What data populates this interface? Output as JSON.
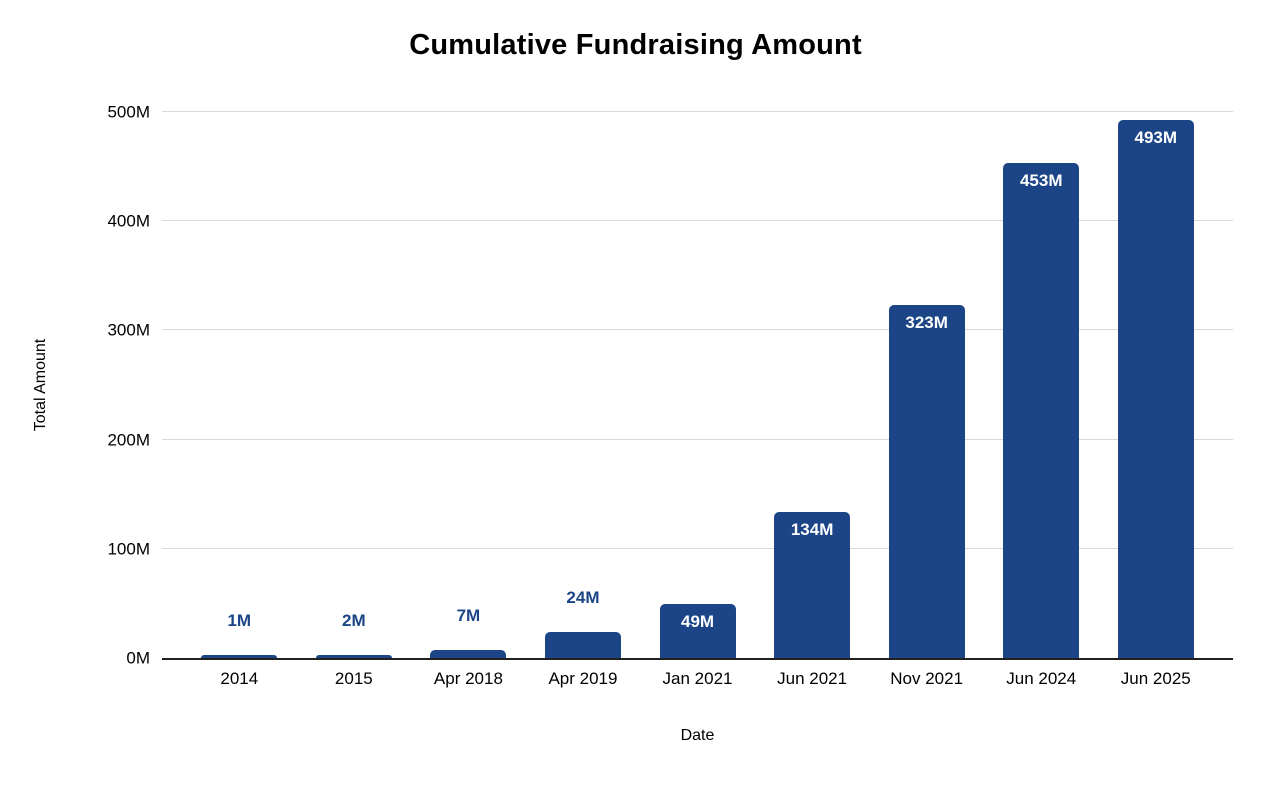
{
  "chart_data": {
    "type": "bar",
    "title": "Cumulative Fundraising Amount",
    "xlabel": "Date",
    "ylabel": "Total Amount",
    "categories": [
      "2014",
      "2015",
      "Apr 2018",
      "Apr 2019",
      "Jan 2021",
      "Jun 2021",
      "Nov 2021",
      "Jun 2024",
      "Jun 2025"
    ],
    "values": [
      1,
      2,
      7,
      24,
      49,
      134,
      323,
      453,
      493
    ],
    "value_labels": [
      "1M",
      "2M",
      "7M",
      "24M",
      "49M",
      "134M",
      "323M",
      "453M",
      "493M"
    ],
    "ylim": [
      0,
      500
    ],
    "yticks": [
      0,
      100,
      200,
      300,
      400,
      500
    ],
    "ytick_labels": [
      "0M",
      "100M",
      "200M",
      "300M",
      "400M",
      "500M"
    ],
    "grid": "horizontal",
    "legend": "none",
    "colors": {
      "bar": "#1c4587",
      "data_label_outside": "#1c4587",
      "data_label_inside": "#ffffff",
      "gridline": "#d9d9d9",
      "axis_line": "#212121",
      "text": "#000000",
      "background": "#ffffff"
    }
  }
}
